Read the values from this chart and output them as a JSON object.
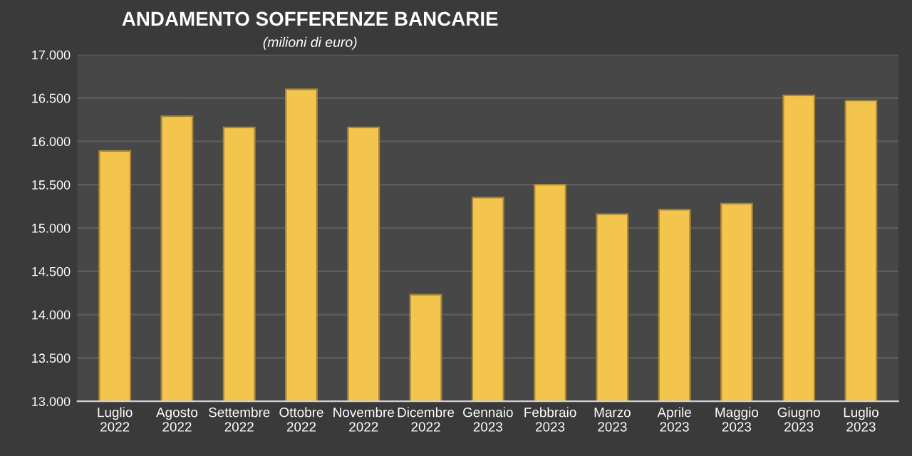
{
  "chart_data": {
    "type": "bar",
    "title": "ANDAMENTO SOFFERENZE BANCARIE",
    "subtitle": "(milioni di euro)",
    "categories": [
      "Luglio\n2022",
      "Agosto\n2022",
      "Settembre\n2022",
      "Ottobre\n2022",
      "Novembre\n2022",
      "Dicembre\n2022",
      "Gennaio\n2023",
      "Febbraio\n2023",
      "Marzo\n2023",
      "Aprile\n2023",
      "Maggio\n2023",
      "Giugno\n2023",
      "Luglio\n2023"
    ],
    "values": [
      15890,
      16290,
      16160,
      16600,
      16160,
      14230,
      15350,
      15500,
      15160,
      15210,
      15280,
      16530,
      16470
    ],
    "color": "#f4c54c",
    "ylim": [
      13000,
      17000
    ],
    "yticks": [
      {
        "value": 13000,
        "label": "13.000"
      },
      {
        "value": 13500,
        "label": "13.500"
      },
      {
        "value": 14000,
        "label": "14.000"
      },
      {
        "value": 14500,
        "label": "14.500"
      },
      {
        "value": 15000,
        "label": "15.000"
      },
      {
        "value": 15500,
        "label": "15.500"
      },
      {
        "value": 16000,
        "label": "16.000"
      },
      {
        "value": 16500,
        "label": "16.500"
      },
      {
        "value": 17000,
        "label": "17.000"
      }
    ],
    "grid": "y",
    "legend": false
  }
}
